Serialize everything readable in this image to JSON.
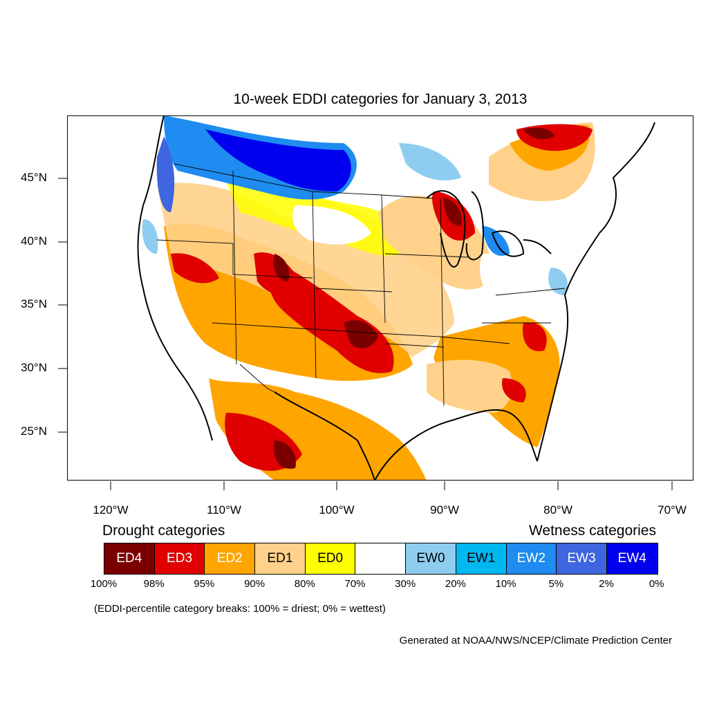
{
  "title": "10-week EDDI categories for January 3, 2013",
  "axes": {
    "y_labels": [
      "45°N",
      "40°N",
      "35°N",
      "30°N",
      "25°N"
    ],
    "x_labels": [
      "120°W",
      "110°W",
      "100°W",
      "90°W",
      "80°W",
      "70°W"
    ]
  },
  "legend": {
    "drought_heading": "Drought categories",
    "wetness_heading": "Wetness categories",
    "categories": [
      {
        "label": "ED4",
        "color": "#7a0000",
        "text_color": "#ffffff"
      },
      {
        "label": "ED3",
        "color": "#e00000",
        "text_color": "#ffffff"
      },
      {
        "label": "ED2",
        "color": "#ffa500",
        "text_color": "#ffffff"
      },
      {
        "label": "ED1",
        "color": "#ffd18a",
        "text_color": "#000000"
      },
      {
        "label": "ED0",
        "color": "#ffff00",
        "text_color": "#000000"
      },
      {
        "label": "",
        "color": "#ffffff",
        "text_color": "#000000"
      },
      {
        "label": "EW0",
        "color": "#8ecdf0",
        "text_color": "#000000"
      },
      {
        "label": "EW1",
        "color": "#00b7f0",
        "text_color": "#000000"
      },
      {
        "label": "EW2",
        "color": "#1e8cf0",
        "text_color": "#ffffff"
      },
      {
        "label": "EW3",
        "color": "#3f65e0",
        "text_color": "#ffffff"
      },
      {
        "label": "EW4",
        "color": "#0000ee",
        "text_color": "#ffffff"
      }
    ],
    "percentiles": [
      "100%",
      "98%",
      "95%",
      "90%",
      "80%",
      "70%",
      "30%",
      "20%",
      "10%",
      "5%",
      "2%",
      "0%"
    ]
  },
  "note": "(EDDI-percentile category breaks: 100% = driest; 0% = wettest)",
  "credit": "Generated at NOAA/NWS/NCEP/Climate Prediction Center"
}
